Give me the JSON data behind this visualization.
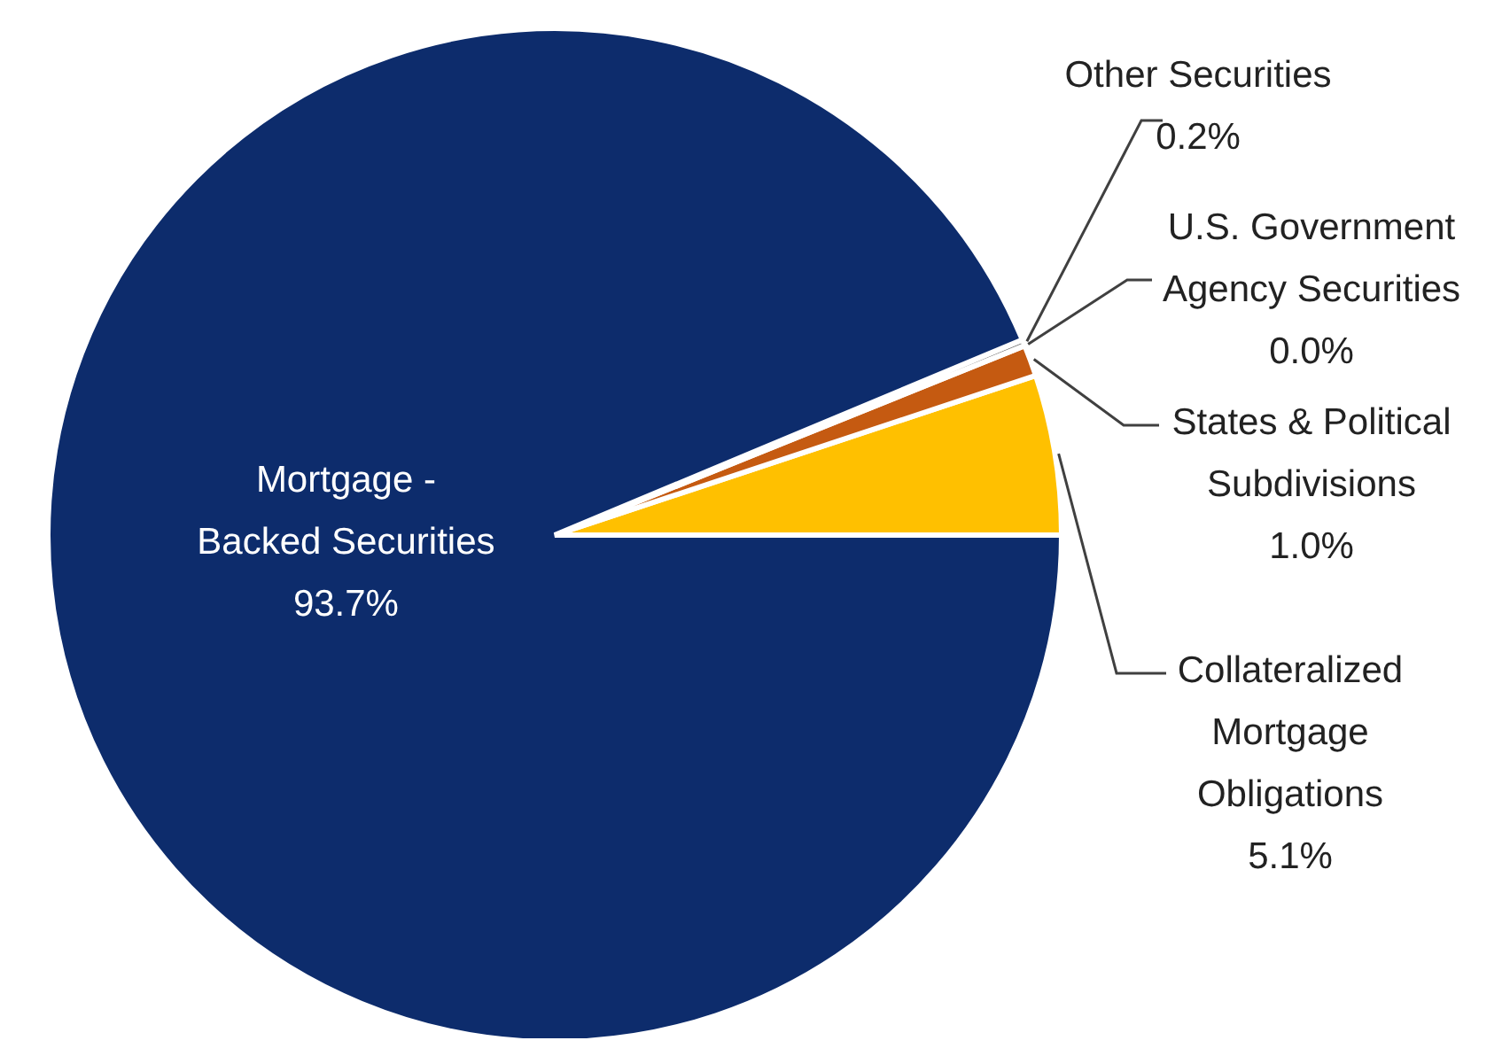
{
  "chart_data": {
    "type": "pie",
    "categories": [
      "Collateralized\nMortgage\nObligations",
      "States & Political\nSubdivisions",
      "U.S. Government\nAgency Securities",
      "Other Securities",
      "Mortgage -\nBacked Securities"
    ],
    "values": [
      5.1,
      1.0,
      0.0,
      0.2,
      93.7
    ],
    "value_labels": [
      "5.1%",
      "1.0%",
      "0.0%",
      "0.2%",
      "93.7%"
    ],
    "colors": [
      "#ffc000",
      "#c55a11",
      "#a5a5a5",
      "#7f7f7f",
      "#0d2c6c"
    ],
    "legend": false
  }
}
